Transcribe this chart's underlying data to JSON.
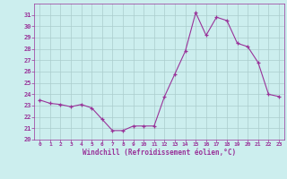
{
  "hours": [
    0,
    1,
    2,
    3,
    4,
    5,
    6,
    7,
    8,
    9,
    10,
    11,
    12,
    13,
    14,
    15,
    16,
    17,
    18,
    19,
    20,
    21,
    22,
    23
  ],
  "values": [
    23.5,
    23.2,
    23.1,
    22.9,
    23.1,
    22.8,
    21.8,
    20.8,
    20.8,
    21.2,
    21.2,
    21.2,
    23.8,
    25.8,
    27.8,
    31.2,
    29.2,
    30.8,
    30.5,
    28.5,
    28.2,
    26.8,
    24.0,
    23.8
  ],
  "line_color": "#993399",
  "marker": "+",
  "bg_color": "#cceeee",
  "grid_color": "#aacccc",
  "text_color": "#993399",
  "xlabel": "Windchill (Refroidissement éolien,°C)",
  "ylim": [
    20,
    32
  ],
  "xlim_min": -0.5,
  "xlim_max": 23.5,
  "yticks": [
    20,
    21,
    22,
    23,
    24,
    25,
    26,
    27,
    28,
    29,
    30,
    31
  ],
  "xticks": [
    0,
    1,
    2,
    3,
    4,
    5,
    6,
    7,
    8,
    9,
    10,
    11,
    12,
    13,
    14,
    15,
    16,
    17,
    18,
    19,
    20,
    21,
    22,
    23
  ]
}
